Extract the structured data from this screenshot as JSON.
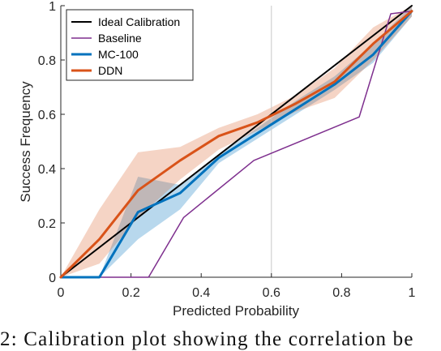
{
  "chart_data": {
    "type": "line",
    "xlabel": "Predicted Probability",
    "ylabel": "Success Frequency",
    "xlim": [
      0,
      1
    ],
    "ylim": [
      0,
      1
    ],
    "xticks": [
      "0",
      "0.2",
      "0.4",
      "0.6",
      "0.8",
      "1"
    ],
    "yticks": [
      "0",
      "0.2",
      "0.4",
      "0.6",
      "0.8",
      "1"
    ],
    "xtick_values": [
      0,
      0.2,
      0.4,
      0.6,
      0.8,
      1
    ],
    "ytick_values": [
      0,
      0.2,
      0.4,
      0.6,
      0.8,
      1
    ],
    "vertical_reference_line_x": 0.6,
    "legend_position": "top-left",
    "series": [
      {
        "name": "Ideal Calibration",
        "color": "#000000",
        "x": [
          0,
          1
        ],
        "y": [
          0,
          1
        ]
      },
      {
        "name": "Baseline",
        "color": "#7e2f8e",
        "x": [
          0,
          0.11,
          0.25,
          0.35,
          0.55,
          0.85,
          0.94,
          1.0
        ],
        "y": [
          0,
          0,
          0,
          0.22,
          0.43,
          0.59,
          0.97,
          0.98
        ]
      },
      {
        "name": "MC-100",
        "color": "#0072bd",
        "x": [
          0,
          0.11,
          0.22,
          0.34,
          0.45,
          0.56,
          0.67,
          0.78,
          0.89,
          1.0
        ],
        "y": [
          0,
          0,
          0.24,
          0.31,
          0.44,
          0.53,
          0.62,
          0.71,
          0.82,
          0.98
        ],
        "band_upper": [
          0,
          0,
          0.37,
          0.34,
          0.45,
          0.55,
          0.65,
          0.74,
          0.86,
          1.0
        ],
        "band_lower": [
          0,
          0,
          0.14,
          0.25,
          0.42,
          0.51,
          0.6,
          0.69,
          0.79,
          0.96
        ]
      },
      {
        "name": "DDN",
        "color": "#d95319",
        "x": [
          0,
          0.11,
          0.22,
          0.34,
          0.45,
          0.56,
          0.67,
          0.78,
          0.89,
          1.0
        ],
        "y": [
          0,
          0.14,
          0.32,
          0.43,
          0.52,
          0.57,
          0.64,
          0.72,
          0.86,
          0.98
        ],
        "band_upper": [
          0,
          0.25,
          0.46,
          0.48,
          0.55,
          0.6,
          0.67,
          0.77,
          0.92,
          1.0
        ],
        "band_lower": [
          0,
          0.05,
          0.22,
          0.36,
          0.47,
          0.54,
          0.61,
          0.66,
          0.8,
          0.96
        ]
      }
    ]
  },
  "caption": "2: Calibration plot showing the correlation be"
}
